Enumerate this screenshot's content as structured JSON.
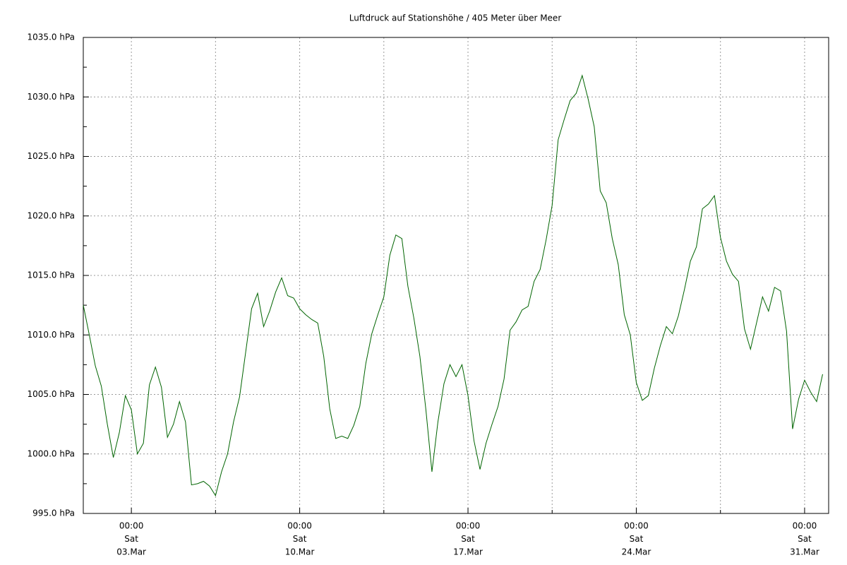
{
  "chart_data": {
    "type": "line",
    "title": "Luftdruck auf Stationshöhe / 405 Meter über Meer",
    "x": [
      "01.Mar 00:00",
      "01.Mar 06:00",
      "01.Mar 12:00",
      "01.Mar 18:00",
      "02.Mar 00:00",
      "02.Mar 06:00",
      "02.Mar 12:00",
      "02.Mar 18:00",
      "03.Mar 00:00",
      "03.Mar 06:00",
      "03.Mar 12:00",
      "03.Mar 18:00",
      "04.Mar 00:00",
      "04.Mar 06:00",
      "04.Mar 12:00",
      "04.Mar 18:00",
      "05.Mar 00:00",
      "05.Mar 06:00",
      "05.Mar 12:00",
      "05.Mar 18:00",
      "06.Mar 00:00",
      "06.Mar 06:00",
      "06.Mar 12:00",
      "06.Mar 18:00",
      "07.Mar 00:00",
      "07.Mar 06:00",
      "07.Mar 12:00",
      "07.Mar 18:00",
      "08.Mar 00:00",
      "08.Mar 06:00",
      "08.Mar 12:00",
      "08.Mar 18:00",
      "09.Mar 00:00",
      "09.Mar 06:00",
      "09.Mar 12:00",
      "09.Mar 18:00",
      "10.Mar 00:00",
      "10.Mar 06:00",
      "10.Mar 12:00",
      "10.Mar 18:00",
      "11.Mar 00:00",
      "11.Mar 06:00",
      "11.Mar 12:00",
      "11.Mar 18:00",
      "12.Mar 00:00",
      "12.Mar 06:00",
      "12.Mar 12:00",
      "12.Mar 18:00",
      "13.Mar 00:00",
      "13.Mar 06:00",
      "13.Mar 12:00",
      "13.Mar 18:00",
      "14.Mar 00:00",
      "14.Mar 06:00",
      "14.Mar 12:00",
      "14.Mar 18:00",
      "15.Mar 00:00",
      "15.Mar 06:00",
      "15.Mar 12:00",
      "15.Mar 18:00",
      "16.Mar 00:00",
      "16.Mar 06:00",
      "16.Mar 12:00",
      "16.Mar 18:00",
      "17.Mar 00:00",
      "17.Mar 06:00",
      "17.Mar 12:00",
      "17.Mar 18:00",
      "18.Mar 00:00",
      "18.Mar 06:00",
      "18.Mar 12:00",
      "18.Mar 18:00",
      "19.Mar 00:00",
      "19.Mar 06:00",
      "19.Mar 12:00",
      "19.Mar 18:00",
      "20.Mar 00:00",
      "20.Mar 06:00",
      "20.Mar 12:00",
      "20.Mar 18:00",
      "21.Mar 00:00",
      "21.Mar 06:00",
      "21.Mar 12:00",
      "21.Mar 18:00",
      "22.Mar 00:00",
      "22.Mar 06:00",
      "22.Mar 12:00",
      "22.Mar 18:00",
      "23.Mar 00:00",
      "23.Mar 06:00",
      "23.Mar 12:00",
      "23.Mar 18:00",
      "24.Mar 00:00",
      "24.Mar 06:00",
      "24.Mar 12:00",
      "24.Mar 18:00",
      "25.Mar 00:00",
      "25.Mar 06:00",
      "25.Mar 12:00",
      "25.Mar 18:00",
      "26.Mar 00:00",
      "26.Mar 06:00",
      "26.Mar 12:00",
      "26.Mar 18:00",
      "27.Mar 00:00",
      "27.Mar 06:00",
      "27.Mar 12:00",
      "27.Mar 18:00",
      "28.Mar 00:00",
      "28.Mar 06:00",
      "28.Mar 12:00",
      "28.Mar 18:00",
      "29.Mar 00:00",
      "29.Mar 06:00",
      "29.Mar 12:00",
      "29.Mar 18:00",
      "30.Mar 00:00",
      "30.Mar 06:00",
      "30.Mar 12:00",
      "30.Mar 18:00",
      "31.Mar 00:00",
      "31.Mar 06:00",
      "31.Mar 12:00",
      "31.Mar 18:00"
    ],
    "values": [
      1012.5,
      1010.0,
      1007.4,
      1005.7,
      1002.5,
      999.7,
      1001.8,
      1004.9,
      1003.7,
      1000.0,
      1000.9,
      1005.8,
      1007.3,
      1005.6,
      1001.4,
      1002.5,
      1004.4,
      1002.7,
      997.4,
      997.5,
      997.7,
      997.3,
      996.5,
      998.5,
      1000.0,
      1002.7,
      1004.8,
      1008.5,
      1012.2,
      1013.5,
      1010.7,
      1012.0,
      1013.6,
      1014.8,
      1013.3,
      1013.1,
      1012.2,
      1011.7,
      1011.3,
      1011.0,
      1008.2,
      1003.8,
      1001.3,
      1001.5,
      1001.3,
      1002.4,
      1004.0,
      1007.6,
      1010.1,
      1011.7,
      1013.2,
      1016.7,
      1018.4,
      1018.1,
      1014.1,
      1011.4,
      1008.2,
      1003.7,
      998.5,
      1002.7,
      1005.9,
      1007.5,
      1006.5,
      1007.5,
      1004.9,
      1001.1,
      998.7,
      1000.9,
      1002.5,
      1004.0,
      1006.3,
      1010.4,
      1011.1,
      1012.1,
      1012.4,
      1014.5,
      1015.5,
      1018.0,
      1020.9,
      1026.4,
      1028.1,
      1029.7,
      1030.3,
      1031.8,
      1029.8,
      1027.5,
      1022.1,
      1021.1,
      1018.1,
      1015.9,
      1011.7,
      1010.0,
      1006.0,
      1004.5,
      1004.9,
      1007.2,
      1009.1,
      1010.7,
      1010.1,
      1011.6,
      1013.8,
      1016.2,
      1017.4,
      1020.6,
      1021.0,
      1021.7,
      1018.2,
      1016.2,
      1015.1,
      1014.5,
      1010.5,
      1008.8,
      1011.0,
      1013.2,
      1012.0,
      1014.0,
      1013.7,
      1010.3,
      1002.1,
      1004.6,
      1006.2,
      1005.2,
      1004.4,
      1006.7
    ],
    "color": "#006400",
    "xlim": [
      "01.Mar 00:00",
      "01.Apr 00:00"
    ],
    "xticks": [
      {
        "value": "03.Mar 00:00",
        "label": [
          "00:00",
          "Sat",
          "03.Mar"
        ]
      },
      {
        "value": "10.Mar 00:00",
        "label": [
          "00:00",
          "Sat",
          "10.Mar"
        ]
      },
      {
        "value": "17.Mar 00:00",
        "label": [
          "00:00",
          "Sat",
          "17.Mar"
        ]
      },
      {
        "value": "24.Mar 00:00",
        "label": [
          "00:00",
          "Sat",
          "24.Mar"
        ]
      },
      {
        "value": "31.Mar 00:00",
        "label": [
          "00:00",
          "Sat",
          "31.Mar"
        ]
      }
    ],
    "xgrid": [
      "06.Mar 12:00",
      "13.Mar 12:00",
      "20.Mar 12:00",
      "27.Mar 12:00"
    ],
    "ylim": [
      995,
      1035
    ],
    "yticks": [
      {
        "value": 995,
        "label": "995.0 hPa"
      },
      {
        "value": 1000,
        "label": "1000.0 hPa"
      },
      {
        "value": 1005,
        "label": "1005.0 hPa"
      },
      {
        "value": 1010,
        "label": "1010.0 hPa"
      },
      {
        "value": 1015,
        "label": "1015.0 hPa"
      },
      {
        "value": 1020,
        "label": "1020.0 hPa"
      },
      {
        "value": 1025,
        "label": "1025.0 hPa"
      },
      {
        "value": 1030,
        "label": "1030.0 hPa"
      },
      {
        "value": 1035,
        "label": "1035.0 hPa"
      }
    ],
    "yminor_ticks": [
      997.5,
      1002.5,
      1007.5,
      1012.5,
      1017.5,
      1022.5,
      1027.5,
      1032.5
    ],
    "grid": true
  }
}
